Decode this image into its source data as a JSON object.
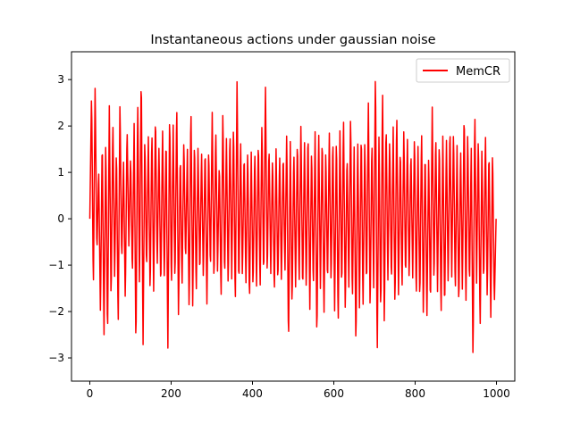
{
  "chart_data": {
    "type": "line",
    "title": "Instantaneous actions under gaussian noise",
    "xlabel": "",
    "ylabel": "",
    "xlim": [
      -45,
      1045
    ],
    "ylim": [
      -3.5,
      3.6
    ],
    "x_ticks": [
      0,
      200,
      400,
      600,
      800,
      1000
    ],
    "x_tick_labels": [
      "0",
      "200",
      "400",
      "600",
      "800",
      "1000"
    ],
    "y_ticks": [
      -3,
      -2,
      -1,
      0,
      1,
      2,
      3
    ],
    "y_tick_labels": [
      "−3",
      "−2",
      "−1",
      "0",
      "1",
      "2",
      "3"
    ],
    "grid": false,
    "legend_position": "top-right",
    "series": [
      {
        "name": "MemCR",
        "color": "#ff0000",
        "n_points": 1000,
        "x_start": 0,
        "x_end": 999,
        "values": [
          0.0,
          2.77,
          -1.6,
          2.9,
          -0.8,
          1.1,
          -2.1,
          1.85,
          -2.6,
          1.8,
          -2.7,
          2.45,
          -1.9,
          2.2,
          -1.3,
          1.6,
          -2.4,
          2.6,
          -1.0,
          1.3,
          -1.85,
          2.05,
          -0.6,
          1.4,
          -1.3,
          2.1,
          -2.95,
          2.6,
          -1.5,
          3.3,
          -2.85,
          1.85,
          -1.2,
          1.8,
          -1.7,
          2.0,
          -1.6,
          2.35,
          -1.1,
          1.6,
          -1.6,
          2.0,
          -1.4,
          1.9,
          -2.85,
          2.4,
          -1.6,
          2.05,
          -1.5,
          2.55,
          -2.2,
          1.5,
          -1.5,
          1.75,
          -1.0,
          1.55,
          -2.1,
          2.55,
          -1.9,
          1.8,
          -1.7,
          1.6,
          -1.3,
          1.5,
          -1.35,
          1.65,
          -1.9,
          1.6,
          -1.2,
          2.3,
          -1.5,
          2.0,
          -1.2,
          1.3,
          -1.8,
          2.4,
          -1.4,
          1.8,
          -1.55,
          2.0,
          -1.3,
          2.15,
          -2.0,
          3.05,
          -1.6,
          1.75,
          -1.3,
          1.5,
          -1.45,
          1.55,
          -1.9,
          1.45,
          -1.6,
          1.55,
          -1.5,
          1.8,
          -1.6,
          2.1,
          -1.4,
          2.95,
          -1.3,
          1.65,
          -1.2,
          1.4,
          -1.7,
          1.55,
          -1.5,
          1.45,
          -1.4,
          1.5,
          -1.2,
          1.95,
          -2.85,
          1.7,
          -2.0,
          1.55,
          -1.5,
          1.8,
          -1.5,
          2.1,
          -1.7,
          1.75,
          -1.6,
          2.0,
          -2.0,
          1.6,
          -1.6,
          1.9,
          -2.75,
          2.0,
          -1.6,
          1.9,
          -2.15,
          1.55,
          -1.5,
          1.9,
          -1.5,
          1.85,
          -2.0,
          1.9,
          -2.4,
          2.0,
          -1.65,
          2.25,
          -2.1,
          1.5,
          -1.55,
          2.35,
          -1.9,
          1.55,
          -2.9,
          1.85,
          -2.0,
          2.0,
          -2.0,
          1.75,
          -1.6,
          2.6,
          -2.1,
          1.8,
          -1.5,
          3.35,
          -3.1,
          1.85,
          -2.2,
          2.9,
          -2.4,
          2.2,
          -1.4,
          1.8,
          -1.5,
          2.0,
          -2.05,
          2.4,
          -1.7,
          1.65,
          -1.6,
          2.0,
          -1.4,
          1.8,
          -1.4,
          1.55,
          -1.3,
          1.9,
          -1.8,
          1.6,
          -1.9,
          2.0,
          -2.15,
          1.6,
          -2.2,
          1.45,
          -2.0,
          2.45,
          -1.5,
          1.9,
          -1.6,
          1.8,
          -2.2,
          1.9,
          -2.1,
          1.8,
          -1.5,
          2.1,
          -1.3,
          2.0,
          -1.7,
          1.6,
          -2.0,
          1.6,
          -1.6,
          2.45,
          -1.9,
          1.95,
          -1.55,
          1.6,
          -3.2,
          2.45,
          -1.4,
          1.9,
          -2.5,
          1.55,
          -1.5,
          1.9,
          -1.8,
          1.6,
          -2.2,
          1.55,
          -1.9,
          0.0
        ]
      }
    ]
  }
}
